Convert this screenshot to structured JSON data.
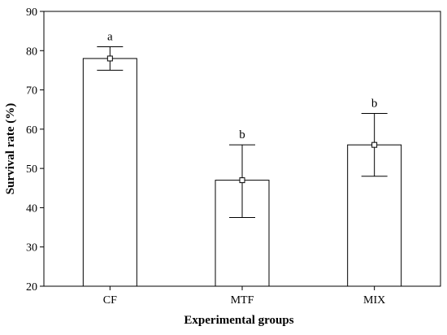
{
  "chart_data": {
    "type": "bar",
    "xlabel": "Experimental groups",
    "ylabel": "Survival rate (%)",
    "ylim": [
      20,
      90
    ],
    "yticks": [
      20,
      30,
      40,
      50,
      60,
      70,
      80,
      90
    ],
    "categories": [
      "CF",
      "MTF",
      "MIX"
    ],
    "values": [
      78,
      47,
      56
    ],
    "error_low": [
      75,
      37.5,
      48
    ],
    "error_high": [
      81,
      56,
      64
    ],
    "significance_labels": [
      "a",
      "b",
      "b"
    ],
    "grid": false,
    "legend": "none"
  },
  "colors": {
    "bar_fill": "#ffffff",
    "stroke": "#000000"
  }
}
